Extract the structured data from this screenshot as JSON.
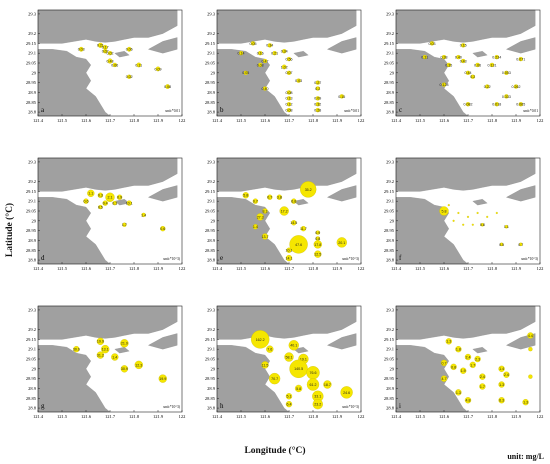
{
  "axes": {
    "ylabel": "Latitude (°C)",
    "xlabel": "Longitude (°C)",
    "unit": "unit: mg/L",
    "x_ticks": [
      "121.4",
      "121.5",
      "121.6",
      "121.7",
      "121.8",
      "121.9",
      "122"
    ],
    "y_ticks": [
      "29.3",
      "29.2",
      "29.1",
      "29",
      "28.9",
      "28.8"
    ],
    "y_ticks_panel": [
      "29.3",
      "29.2",
      "29.15",
      "29.1",
      "29.05",
      "29",
      "28.95",
      "28.9",
      "28.85",
      "28.8"
    ]
  },
  "colors": {
    "land": "#a0a0a0",
    "bubble": "#f5e600",
    "bubble_edge": "#c8b800",
    "sea": "#ffffff"
  },
  "panels": [
    {
      "id": "a",
      "unit_note": "unit:*0.01",
      "points": [
        {
          "lon": 121.58,
          "lat": 29.12,
          "label": "0.03",
          "r": 2.2
        },
        {
          "lon": 121.66,
          "lat": 29.14,
          "label": "0.21",
          "r": 2.4
        },
        {
          "lon": 121.68,
          "lat": 29.13,
          "label": "0.17",
          "r": 2.2
        },
        {
          "lon": 121.68,
          "lat": 29.11,
          "label": "0.07",
          "r": 2.0
        },
        {
          "lon": 121.7,
          "lat": 29.1,
          "label": "0.02",
          "r": 2.0
        },
        {
          "lon": 121.78,
          "lat": 29.12,
          "label": "0.06",
          "r": 2.2
        },
        {
          "lon": 121.7,
          "lat": 29.06,
          "label": "0.48",
          "r": 2.4
        },
        {
          "lon": 121.72,
          "lat": 29.04,
          "label": "0.06",
          "r": 2.0
        },
        {
          "lon": 121.82,
          "lat": 29.04,
          "label": "0.11",
          "r": 2.2
        },
        {
          "lon": 121.9,
          "lat": 29.02,
          "label": "0.09",
          "r": 2.2
        },
        {
          "lon": 121.78,
          "lat": 28.98,
          "label": "0.02",
          "r": 2.0
        },
        {
          "lon": 121.94,
          "lat": 28.93,
          "label": "0.08",
          "r": 2.2
        }
      ]
    },
    {
      "id": "b",
      "unit_note": "unit:*0.01",
      "points": [
        {
          "lon": 121.55,
          "lat": 29.15,
          "label": "0.05",
          "r": 2.0
        },
        {
          "lon": 121.62,
          "lat": 29.14,
          "label": "0.34",
          "r": 2.0
        },
        {
          "lon": 121.5,
          "lat": 29.1,
          "label": "0.14",
          "r": 2.0
        },
        {
          "lon": 121.58,
          "lat": 29.1,
          "label": "0.16",
          "r": 2.0
        },
        {
          "lon": 121.64,
          "lat": 29.1,
          "label": "0.21",
          "r": 2.0
        },
        {
          "lon": 121.68,
          "lat": 29.11,
          "label": "0.34",
          "r": 2.0
        },
        {
          "lon": 121.7,
          "lat": 29.07,
          "label": "0.56",
          "r": 2.0
        },
        {
          "lon": 121.6,
          "lat": 29.06,
          "label": "0.47",
          "r": 2.0
        },
        {
          "lon": 121.58,
          "lat": 29.04,
          "label": "0.08",
          "r": 2.0
        },
        {
          "lon": 121.68,
          "lat": 29.03,
          "label": "1.02",
          "r": 2.2
        },
        {
          "lon": 121.52,
          "lat": 29.0,
          "label": "0.05",
          "r": 2.0
        },
        {
          "lon": 121.7,
          "lat": 29.0,
          "label": "0.07",
          "r": 2.0
        },
        {
          "lon": 121.74,
          "lat": 28.96,
          "label": "0.03",
          "r": 2.0
        },
        {
          "lon": 121.82,
          "lat": 28.95,
          "label": "0.27",
          "r": 2.0
        },
        {
          "lon": 121.6,
          "lat": 28.92,
          "label": "0.40",
          "r": 2.0
        },
        {
          "lon": 121.7,
          "lat": 28.9,
          "label": "0.08",
          "r": 2.0
        },
        {
          "lon": 121.82,
          "lat": 28.92,
          "label": "0.2",
          "r": 2.0
        },
        {
          "lon": 121.92,
          "lat": 28.88,
          "label": "0.15",
          "r": 2.0
        },
        {
          "lon": 121.7,
          "lat": 28.87,
          "label": "0.13",
          "r": 2.0
        },
        {
          "lon": 121.82,
          "lat": 28.87,
          "label": "0.09",
          "r": 2.0
        },
        {
          "lon": 121.7,
          "lat": 28.84,
          "label": "0.12",
          "r": 2.0
        },
        {
          "lon": 121.82,
          "lat": 28.84,
          "label": "0.32",
          "r": 2.0
        },
        {
          "lon": 121.7,
          "lat": 28.81,
          "label": "0.08",
          "r": 2.0
        },
        {
          "lon": 121.82,
          "lat": 28.81,
          "label": "0.28",
          "r": 2.0
        }
      ]
    },
    {
      "id": "c",
      "unit_note": "unit:*0.01",
      "points": [
        {
          "lon": 121.55,
          "lat": 29.15,
          "label": "0.03",
          "r": 2.0
        },
        {
          "lon": 121.68,
          "lat": 29.14,
          "label": "0.15",
          "r": 2.0
        },
        {
          "lon": 121.52,
          "lat": 29.08,
          "label": "0.31",
          "r": 2.0
        },
        {
          "lon": 121.6,
          "lat": 29.08,
          "label": "0.38",
          "r": 2.0
        },
        {
          "lon": 121.66,
          "lat": 29.08,
          "label": "0.40",
          "r": 2.0
        },
        {
          "lon": 121.68,
          "lat": 29.06,
          "label": "0.43",
          "r": 2.0
        },
        {
          "lon": 121.62,
          "lat": 29.04,
          "label": "0.35",
          "r": 2.0
        },
        {
          "lon": 121.74,
          "lat": 29.04,
          "label": "0.06",
          "r": 2.0
        },
        {
          "lon": 121.82,
          "lat": 29.08,
          "label": "0.234",
          "r": 2.0
        },
        {
          "lon": 121.92,
          "lat": 29.07,
          "label": "0.071",
          "r": 2.0
        },
        {
          "lon": 121.7,
          "lat": 29.0,
          "label": "0.44",
          "r": 2.0
        },
        {
          "lon": 121.8,
          "lat": 29.04,
          "label": "0.131",
          "r": 2.0
        },
        {
          "lon": 121.72,
          "lat": 28.98,
          "label": "0.2",
          "r": 2.0
        },
        {
          "lon": 121.86,
          "lat": 29.0,
          "label": "0.053",
          "r": 2.0
        },
        {
          "lon": 121.6,
          "lat": 28.94,
          "label": "0.128",
          "r": 2.0
        },
        {
          "lon": 121.78,
          "lat": 28.93,
          "label": "0.22",
          "r": 2.0
        },
        {
          "lon": 121.9,
          "lat": 28.93,
          "label": "0.262",
          "r": 2.0
        },
        {
          "lon": 121.86,
          "lat": 28.88,
          "label": "0.333",
          "r": 2.0
        },
        {
          "lon": 121.7,
          "lat": 28.84,
          "label": "0.082",
          "r": 2.0
        },
        {
          "lon": 121.82,
          "lat": 28.84,
          "label": "0.018",
          "r": 2.0
        },
        {
          "lon": 121.92,
          "lat": 28.84,
          "label": "0.065",
          "r": 2.0
        }
      ]
    },
    {
      "id": "d",
      "unit_note": "unit:*10^3)",
      "points": [
        {
          "lon": 121.62,
          "lat": 29.14,
          "label": "1.1",
          "r": 3.5
        },
        {
          "lon": 121.66,
          "lat": 29.13,
          "label": "0.3",
          "r": 2.5
        },
        {
          "lon": 121.7,
          "lat": 29.12,
          "label": "2.1",
          "r": 4.5
        },
        {
          "lon": 121.74,
          "lat": 29.12,
          "label": "0.9",
          "r": 2.5
        },
        {
          "lon": 121.6,
          "lat": 29.1,
          "label": "0.6",
          "r": 2.5
        },
        {
          "lon": 121.68,
          "lat": 29.09,
          "label": "0.4",
          "r": 2.5
        },
        {
          "lon": 121.72,
          "lat": 29.09,
          "label": "0.1",
          "r": 2.0
        },
        {
          "lon": 121.78,
          "lat": 29.09,
          "label": "10.1",
          "r": 2.5
        },
        {
          "lon": 121.66,
          "lat": 29.07,
          "label": "0.5",
          "r": 2.0
        },
        {
          "lon": 121.84,
          "lat": 29.03,
          "label": "1.4",
          "r": 2.0
        },
        {
          "lon": 121.76,
          "lat": 28.98,
          "label": "1.7",
          "r": 2.0
        },
        {
          "lon": 121.92,
          "lat": 28.96,
          "label": "0.6",
          "r": 2.5
        }
      ]
    },
    {
      "id": "e",
      "unit_note": "unit:*10^3)",
      "points": [
        {
          "lon": 121.78,
          "lat": 29.16,
          "label": "35.2",
          "r": 8.0
        },
        {
          "lon": 121.52,
          "lat": 29.13,
          "label": "5.8",
          "r": 3.0
        },
        {
          "lon": 121.62,
          "lat": 29.12,
          "label": "0.7",
          "r": 2.5
        },
        {
          "lon": 121.66,
          "lat": 29.12,
          "label": "3.8",
          "r": 2.5
        },
        {
          "lon": 121.56,
          "lat": 29.1,
          "label": "0.7",
          "r": 2.5
        },
        {
          "lon": 121.72,
          "lat": 29.1,
          "label": "6.8",
          "r": 2.5
        },
        {
          "lon": 121.68,
          "lat": 29.05,
          "label": "17.2",
          "r": 4.5
        },
        {
          "lon": 121.6,
          "lat": 29.05,
          "label": "8.1",
          "r": 2.5
        },
        {
          "lon": 121.58,
          "lat": 29.02,
          "label": "27.3",
          "r": 3.5
        },
        {
          "lon": 121.72,
          "lat": 28.99,
          "label": "14.5",
          "r": 2.5
        },
        {
          "lon": 121.56,
          "lat": 28.97,
          "label": "1.4",
          "r": 2.5
        },
        {
          "lon": 121.76,
          "lat": 28.96,
          "label": "11.7",
          "r": 2.5
        },
        {
          "lon": 121.6,
          "lat": 28.92,
          "label": "13.7",
          "r": 3.0
        },
        {
          "lon": 121.82,
          "lat": 28.94,
          "label": "0.9",
          "r": 2.0
        },
        {
          "lon": 121.82,
          "lat": 28.91,
          "label": "0.8",
          "r": 2.0
        },
        {
          "lon": 121.74,
          "lat": 28.88,
          "label": "47.6",
          "r": 9.0
        },
        {
          "lon": 121.82,
          "lat": 28.88,
          "label": "17.8",
          "r": 4.0
        },
        {
          "lon": 121.92,
          "lat": 28.89,
          "label": "20.1",
          "r": 5.0
        },
        {
          "lon": 121.7,
          "lat": 28.85,
          "label": "10.1",
          "r": 2.5
        },
        {
          "lon": 121.7,
          "lat": 28.81,
          "label": "14.1",
          "r": 3.0
        },
        {
          "lon": 121.82,
          "lat": 28.83,
          "label": "12.5",
          "r": 3.5
        }
      ]
    },
    {
      "id": "f",
      "unit_note": "unit:*10^3)",
      "points": [
        {
          "lon": 121.6,
          "lat": 29.05,
          "label": "5.8",
          "r": 4.5
        },
        {
          "lon": 121.62,
          "lat": 29.08,
          "label": "",
          "r": 0.9
        },
        {
          "lon": 121.66,
          "lat": 29.04,
          "label": "",
          "r": 0.9
        },
        {
          "lon": 121.7,
          "lat": 29.02,
          "label": "",
          "r": 0.9
        },
        {
          "lon": 121.74,
          "lat": 29.04,
          "label": "",
          "r": 0.9
        },
        {
          "lon": 121.78,
          "lat": 29.02,
          "label": "",
          "r": 0.9
        },
        {
          "lon": 121.82,
          "lat": 29.04,
          "label": "",
          "r": 0.9
        },
        {
          "lon": 121.68,
          "lat": 28.98,
          "label": "",
          "r": 0.9
        },
        {
          "lon": 121.72,
          "lat": 28.98,
          "label": "",
          "r": 0.9
        },
        {
          "lon": 121.64,
          "lat": 29.0,
          "label": "",
          "r": 0.9
        },
        {
          "lon": 121.76,
          "lat": 28.98,
          "label": "0.8",
          "r": 1.6
        },
        {
          "lon": 121.86,
          "lat": 28.97,
          "label": "1.1",
          "r": 1.6
        },
        {
          "lon": 121.84,
          "lat": 28.88,
          "label": "0.5",
          "r": 1.6
        },
        {
          "lon": 121.92,
          "lat": 28.88,
          "label": "0.7",
          "r": 1.6
        }
      ]
    },
    {
      "id": "g",
      "unit_note": "unit:*10^3)",
      "points": [
        {
          "lon": 121.66,
          "lat": 29.14,
          "label": "19.9",
          "r": 3.5
        },
        {
          "lon": 121.76,
          "lat": 29.13,
          "label": "21.9",
          "r": 4.0
        },
        {
          "lon": 121.56,
          "lat": 29.1,
          "label": "30.6",
          "r": 3.0
        },
        {
          "lon": 121.68,
          "lat": 29.1,
          "label": "13.1",
          "r": 4.0
        },
        {
          "lon": 121.66,
          "lat": 29.07,
          "label": "31.2",
          "r": 3.5
        },
        {
          "lon": 121.72,
          "lat": 29.06,
          "label": "1.4",
          "r": 3.5
        },
        {
          "lon": 121.82,
          "lat": 29.02,
          "label": "12.3",
          "r": 4.0
        },
        {
          "lon": 121.76,
          "lat": 29.0,
          "label": "30.9",
          "r": 3.5
        },
        {
          "lon": 121.92,
          "lat": 28.95,
          "label": "19.9",
          "r": 4.0
        }
      ]
    },
    {
      "id": "h",
      "unit_note": "unit:*10^3)",
      "points": [
        {
          "lon": 121.58,
          "lat": 29.15,
          "label": "162.2",
          "r": 9.0
        },
        {
          "lon": 121.72,
          "lat": 29.12,
          "label": "40.1",
          "r": 5.0
        },
        {
          "lon": 121.62,
          "lat": 29.1,
          "label": "7.6",
          "r": 3.5
        },
        {
          "lon": 121.7,
          "lat": 29.06,
          "label": "58.1",
          "r": 4.5
        },
        {
          "lon": 121.76,
          "lat": 29.05,
          "label": "19.1",
          "r": 5.0
        },
        {
          "lon": 121.6,
          "lat": 29.02,
          "label": "11.5",
          "r": 3.5
        },
        {
          "lon": 121.74,
          "lat": 29.0,
          "label": "140.5",
          "r": 9.0
        },
        {
          "lon": 121.8,
          "lat": 28.98,
          "label": "76.6",
          "r": 6.5
        },
        {
          "lon": 121.64,
          "lat": 28.95,
          "label": "70.7",
          "r": 5.5
        },
        {
          "lon": 121.8,
          "lat": 28.92,
          "label": "61.2",
          "r": 6.0
        },
        {
          "lon": 121.74,
          "lat": 28.9,
          "label": "5.8",
          "r": 3.5
        },
        {
          "lon": 121.86,
          "lat": 28.92,
          "label": "18.7",
          "r": 4.0
        },
        {
          "lon": 121.94,
          "lat": 28.88,
          "label": "24.6",
          "r": 6.0
        },
        {
          "lon": 121.7,
          "lat": 28.86,
          "label": "5.1",
          "r": 3.0
        },
        {
          "lon": 121.82,
          "lat": 28.86,
          "label": "33.1",
          "r": 5.5
        },
        {
          "lon": 121.7,
          "lat": 28.82,
          "label": "6.4",
          "r": 3.0
        },
        {
          "lon": 121.82,
          "lat": 28.82,
          "label": "23.2",
          "r": 5.0
        }
      ]
    },
    {
      "id": "i",
      "unit_note": "",
      "points": [
        {
          "lon": 121.62,
          "lat": 29.14,
          "label": "1.3",
          "r": 3.0
        },
        {
          "lon": 121.66,
          "lat": 29.1,
          "label": "1.8",
          "r": 3.0
        },
        {
          "lon": 121.7,
          "lat": 29.06,
          "label": "2.4",
          "r": 3.0
        },
        {
          "lon": 121.74,
          "lat": 29.05,
          "label": "2.3",
          "r": 3.0
        },
        {
          "lon": 121.72,
          "lat": 29.02,
          "label": "1.7",
          "r": 3.0
        },
        {
          "lon": 121.6,
          "lat": 29.03,
          "label": "0.7",
          "r": 3.0
        },
        {
          "lon": 121.64,
          "lat": 29.01,
          "label": "0.8",
          "r": 3.0
        },
        {
          "lon": 121.68,
          "lat": 28.99,
          "label": "1.9",
          "r": 3.0
        },
        {
          "lon": 121.76,
          "lat": 28.96,
          "label": "2.4",
          "r": 3.0
        },
        {
          "lon": 121.84,
          "lat": 29.0,
          "label": "1.4",
          "r": 3.0
        },
        {
          "lon": 121.86,
          "lat": 28.97,
          "label": "2.4",
          "r": 3.0
        },
        {
          "lon": 121.6,
          "lat": 28.95,
          "label": "4.7",
          "r": 3.0
        },
        {
          "lon": 121.76,
          "lat": 28.91,
          "label": "1.7",
          "r": 3.0
        },
        {
          "lon": 121.84,
          "lat": 28.92,
          "label": "1.3",
          "r": 3.0
        },
        {
          "lon": 121.66,
          "lat": 28.88,
          "label": "1.3",
          "r": 3.0
        },
        {
          "lon": 121.7,
          "lat": 28.84,
          "label": "4.8",
          "r": 3.0
        },
        {
          "lon": 121.84,
          "lat": 28.84,
          "label": "6.3",
          "r": 3.0
        },
        {
          "lon": 121.94,
          "lat": 28.83,
          "label": "1.3",
          "r": 3.0
        },
        {
          "lon": 121.96,
          "lat": 29.17,
          "label": "4.4",
          "r": 3.0
        },
        {
          "lon": 121.96,
          "lat": 29.1,
          "label": "",
          "r": 2.0
        },
        {
          "lon": 121.96,
          "lat": 28.96,
          "label": "",
          "r": 2.0
        }
      ]
    }
  ]
}
